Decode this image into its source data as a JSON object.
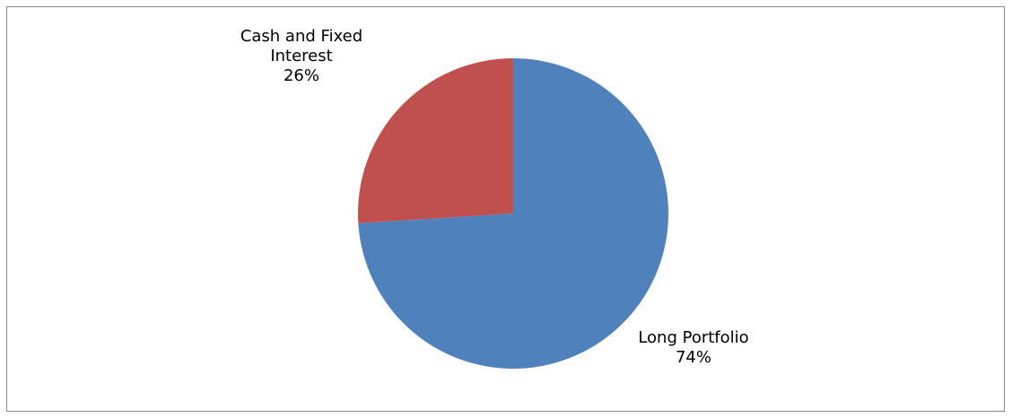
{
  "chart_data": {
    "type": "pie",
    "title": "",
    "legend": "none",
    "slices": [
      {
        "name": "Long Portfolio",
        "label_lines": [
          "Long Portfolio"
        ],
        "percent_label": "74%",
        "value": 74,
        "color": "#4f81bd"
      },
      {
        "name": "Cash and Fixed Interest",
        "label_lines": [
          "Cash and Fixed",
          "Interest"
        ],
        "percent_label": "26%",
        "value": 26,
        "color": "#c0504d"
      }
    ]
  }
}
